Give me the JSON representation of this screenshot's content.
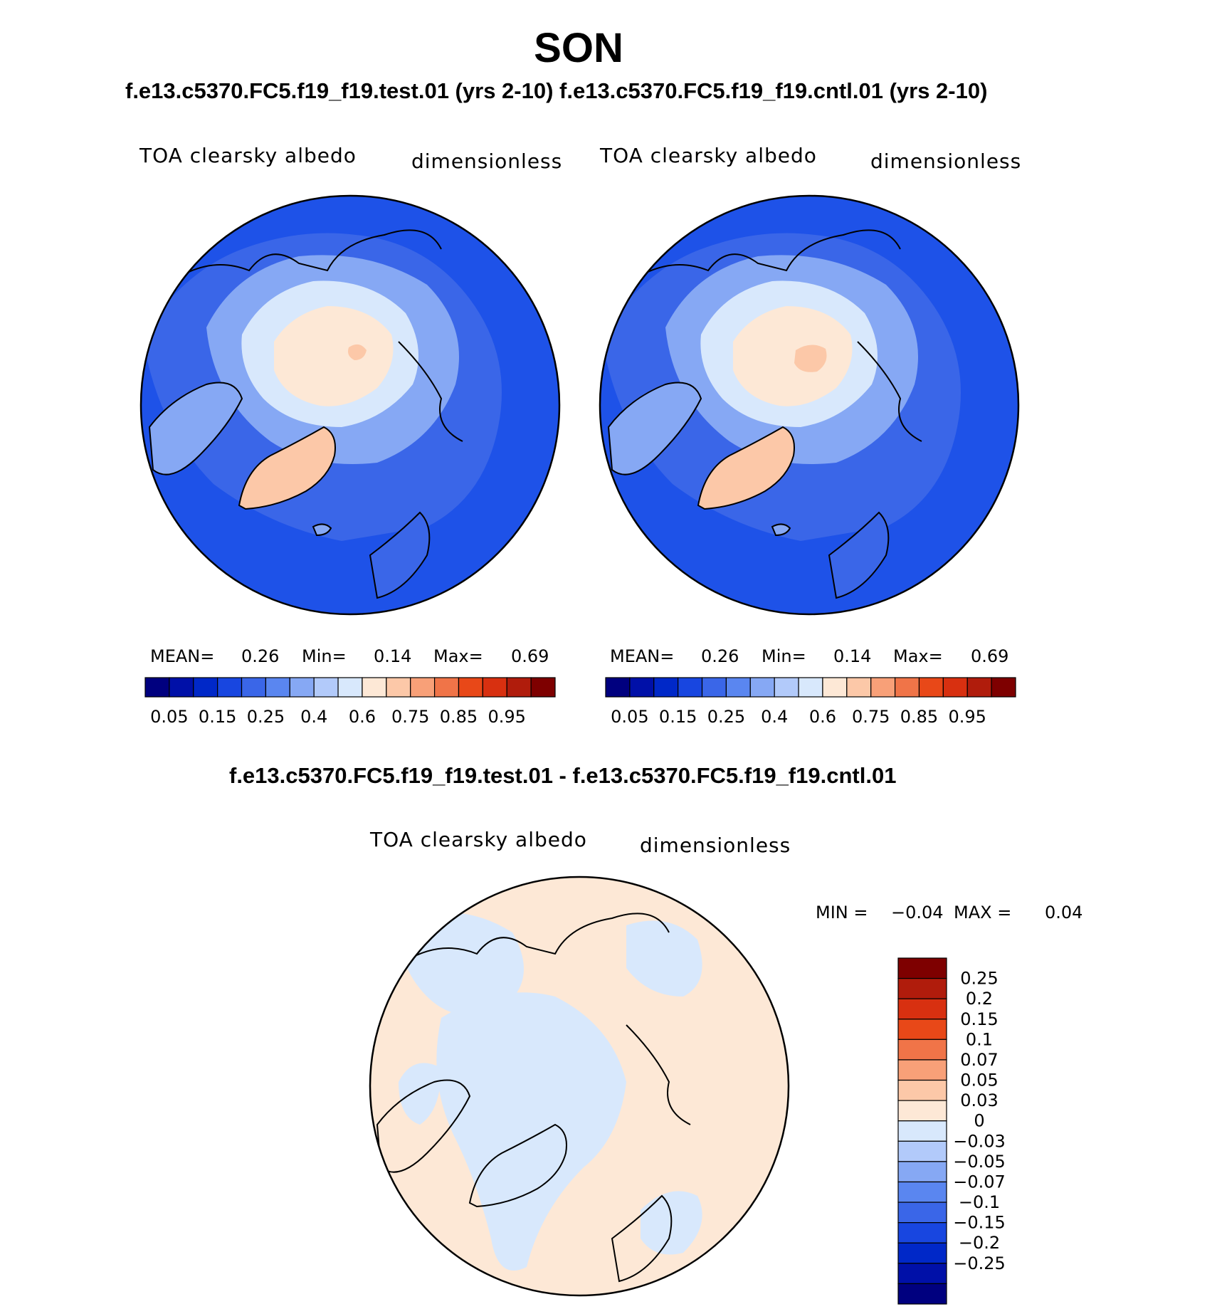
{
  "title": "SON",
  "top_subtitle": "f.e13.c5370.FC5.f19_f19.test.01 (yrs 2-10) f.e13.c5370.FC5.f19_f19.cntl.01 (yrs 2-10)",
  "panels": [
    {
      "variable": "TOA clearsky albedo",
      "units": "dimensionless",
      "stats": {
        "mean_label": "MEAN=",
        "mean": "0.26",
        "min_label": "Min=",
        "min": "0.14",
        "max_label": "Max=",
        "max": "0.69"
      }
    },
    {
      "variable": "TOA clearsky albedo",
      "units": "dimensionless",
      "stats": {
        "mean_label": "MEAN=",
        "mean": "0.26",
        "min_label": "Min=",
        "min": "0.14",
        "max_label": "Max=",
        "max": "0.69"
      }
    }
  ],
  "colorbar_top": {
    "colors": [
      "#00007f",
      "#0010a8",
      "#0028c8",
      "#1846e0",
      "#3a66e8",
      "#5a86f0",
      "#86a8f4",
      "#b2cafa",
      "#d8e8fc",
      "#fde8d6",
      "#fcc8a8",
      "#f8a078",
      "#f07448",
      "#e84818",
      "#d83010",
      "#b01c0c",
      "#7e0000"
    ],
    "tick_labels": [
      "0.05",
      "0.15",
      "0.25",
      "0.4",
      "0.6",
      "0.75",
      "0.85",
      "0.95"
    ]
  },
  "diff_subtitle": "f.e13.c5370.FC5.f19_f19.test.01 - f.e13.c5370.FC5.f19_f19.cntl.01",
  "diff_panel": {
    "variable": "TOA clearsky albedo",
    "units": "dimensionless",
    "min_label": "MIN =",
    "min": "−0.04",
    "max_label": "MAX =",
    "max": "0.04"
  },
  "colorbar_diff": {
    "colors": [
      "#7e0000",
      "#b01c0c",
      "#d83010",
      "#e84818",
      "#f07448",
      "#f8a078",
      "#fcc8a8",
      "#fde8d6",
      "#d8e8fc",
      "#b2cafa",
      "#86a8f4",
      "#5a86f0",
      "#3a66e8",
      "#1846e0",
      "#0028c8",
      "#0010a8",
      "#00007f"
    ],
    "tick_labels": [
      "0.25",
      "0.2",
      "0.15",
      "0.1",
      "0.07",
      "0.05",
      "0.03",
      "0",
      "−0.03",
      "−0.05",
      "−0.07",
      "−0.1",
      "−0.15",
      "−0.2",
      "−0.25"
    ]
  },
  "map_colors": {
    "ocean_dark": "#1e52e8",
    "ocean_mid": "#3a66e8",
    "land_light": "#86a8f4",
    "land_pale": "#b2cafa",
    "ice_pale": "#d8e8fc",
    "ice_peach": "#fde8d6",
    "greenland": "#fcc8a8",
    "diff_pos": "#fde8d6",
    "diff_neg": "#d8e8fc"
  }
}
